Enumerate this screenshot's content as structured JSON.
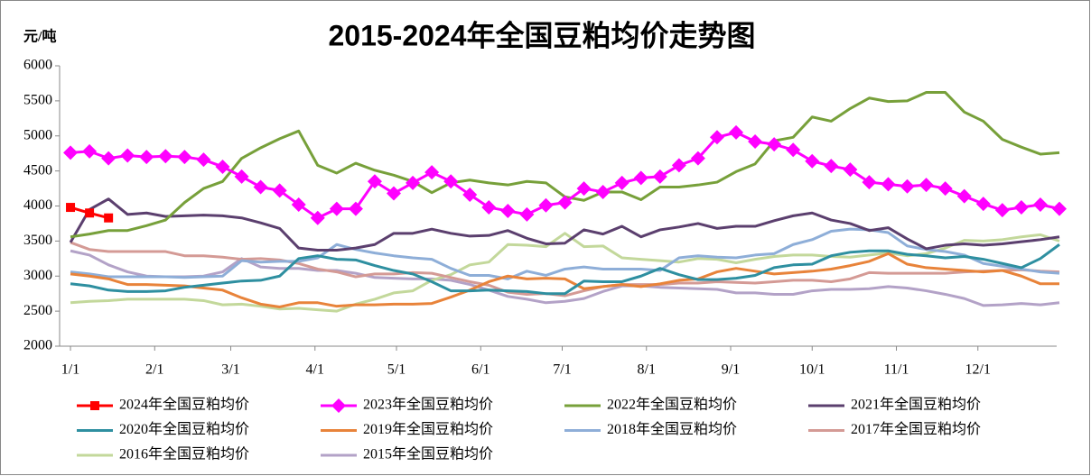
{
  "chart_data": {
    "type": "line",
    "title": "2015-2024年全国豆粕均价走势图",
    "y_axis_label": "元/吨",
    "x": [
      0,
      7,
      14,
      21,
      28,
      35,
      42,
      49,
      56,
      63,
      70,
      77,
      84,
      91,
      98,
      105,
      112,
      119,
      126,
      133,
      140,
      147,
      154,
      161,
      168,
      175,
      182,
      189,
      196,
      203,
      210,
      217,
      224,
      231,
      238,
      245,
      252,
      259,
      266,
      273,
      280,
      287,
      294,
      301,
      308,
      315,
      322,
      329,
      336,
      343,
      350,
      357,
      364
    ],
    "xlim": [
      -4,
      363
    ],
    "xticks": [
      {
        "value": 0,
        "label": "1/1"
      },
      {
        "value": 31,
        "label": "2/1"
      },
      {
        "value": 59,
        "label": "3/1"
      },
      {
        "value": 90,
        "label": "4/1"
      },
      {
        "value": 120,
        "label": "5/1"
      },
      {
        "value": 151,
        "label": "6/1"
      },
      {
        "value": 181,
        "label": "7/1"
      },
      {
        "value": 212,
        "label": "8/1"
      },
      {
        "value": 243,
        "label": "9/1"
      },
      {
        "value": 273,
        "label": "10/1"
      },
      {
        "value": 304,
        "label": "11/1"
      },
      {
        "value": 334,
        "label": "12/1"
      }
    ],
    "ylim": [
      2000,
      6000
    ],
    "yticks": [
      2000,
      2500,
      3000,
      3500,
      4000,
      4500,
      5000,
      5500,
      6000
    ],
    "grid": false,
    "legend": "bottom",
    "series": [
      {
        "name": "2024年全国豆粕均价",
        "color": "#ff0000",
        "marker": "square",
        "values": [
          3980,
          3900,
          3830,
          null,
          null,
          null,
          null,
          null,
          null,
          null,
          null,
          null,
          null,
          null,
          null,
          null,
          null,
          null,
          null,
          null,
          null,
          null,
          null,
          null,
          null,
          null,
          null,
          null,
          null,
          null,
          null,
          null,
          null,
          null,
          null,
          null,
          null,
          null,
          null,
          null,
          null,
          null,
          null,
          null,
          null,
          null,
          null,
          null,
          null,
          null,
          null,
          null,
          null
        ]
      },
      {
        "name": "2023年全国豆粕均价",
        "color": "#ff00ff",
        "marker": "diamond",
        "values": [
          4760,
          4780,
          4680,
          4720,
          4700,
          4710,
          4700,
          4660,
          4560,
          4420,
          4270,
          4220,
          4020,
          3830,
          3960,
          3960,
          4350,
          4180,
          4330,
          4480,
          4350,
          4160,
          3980,
          3930,
          3880,
          4010,
          4050,
          4250,
          4200,
          4330,
          4400,
          4420,
          4580,
          4680,
          4980,
          5050,
          4920,
          4880,
          4800,
          4640,
          4570,
          4520,
          4340,
          4310,
          4280,
          4300,
          4250,
          4140,
          4030,
          3940,
          3980,
          4020,
          3960
        ]
      },
      {
        "name": "2022年全国豆粕均价",
        "color": "#77a03a",
        "values": [
          3560,
          3600,
          3650,
          3650,
          3720,
          3800,
          4050,
          4250,
          4350,
          4680,
          4830,
          4960,
          5070,
          4580,
          4470,
          4610,
          4510,
          4440,
          4350,
          4190,
          4330,
          4370,
          4330,
          4300,
          4350,
          4330,
          4130,
          4080,
          4200,
          4200,
          4090,
          4270,
          4270,
          4300,
          4340,
          4490,
          4600,
          4930,
          4980,
          5270,
          5210,
          5390,
          5540,
          5490,
          5500,
          5620,
          5620,
          5340,
          5210,
          4950,
          4840,
          4740,
          4760
        ]
      },
      {
        "name": "2021年全国豆粕均价",
        "color": "#5b3f6e",
        "values": [
          3480,
          3950,
          4100,
          3880,
          3900,
          3850,
          3860,
          3870,
          3860,
          3830,
          3760,
          3680,
          3400,
          3370,
          3370,
          3400,
          3450,
          3610,
          3610,
          3670,
          3610,
          3570,
          3580,
          3650,
          3540,
          3460,
          3470,
          3660,
          3600,
          3710,
          3560,
          3660,
          3700,
          3750,
          3680,
          3710,
          3710,
          3790,
          3860,
          3900,
          3800,
          3750,
          3650,
          3690,
          3530,
          3390,
          3440,
          3460,
          3440,
          3460,
          3490,
          3520,
          3560
        ]
      },
      {
        "name": "2020年全国豆粕均价",
        "color": "#2e8fa0",
        "values": [
          2890,
          2860,
          2800,
          2780,
          2780,
          2790,
          2840,
          2870,
          2900,
          2930,
          2940,
          3000,
          3250,
          3290,
          3240,
          3230,
          3150,
          3080,
          3030,
          2920,
          2790,
          2790,
          2800,
          2790,
          2780,
          2750,
          2750,
          2930,
          2920,
          2920,
          3000,
          3110,
          3020,
          2950,
          2950,
          2970,
          3010,
          3120,
          3160,
          3170,
          3290,
          3340,
          3360,
          3360,
          3310,
          3290,
          3260,
          3280,
          3240,
          3180,
          3120,
          3250,
          3450
        ]
      },
      {
        "name": "2019年全国豆粕均价",
        "color": "#e8833a",
        "values": [
          3030,
          3000,
          2960,
          2880,
          2880,
          2870,
          2860,
          2830,
          2800,
          2690,
          2600,
          2560,
          2620,
          2620,
          2570,
          2590,
          2590,
          2600,
          2600,
          2610,
          2700,
          2800,
          2920,
          3000,
          2960,
          2970,
          2960,
          2820,
          2850,
          2880,
          2850,
          2890,
          2940,
          2960,
          3060,
          3110,
          3070,
          3030,
          3050,
          3070,
          3100,
          3150,
          3210,
          3320,
          3170,
          3120,
          3100,
          3080,
          3060,
          3080,
          3000,
          2890,
          2890
        ]
      },
      {
        "name": "2018年全国豆粕均价",
        "color": "#8eaed8",
        "values": [
          3060,
          3030,
          2990,
          2990,
          2990,
          2990,
          2980,
          2990,
          3000,
          3220,
          3200,
          3210,
          3210,
          3260,
          3450,
          3380,
          3330,
          3290,
          3260,
          3240,
          3110,
          3010,
          3010,
          2960,
          3070,
          3010,
          3100,
          3130,
          3100,
          3100,
          3100,
          3080,
          3260,
          3290,
          3270,
          3260,
          3300,
          3320,
          3450,
          3520,
          3640,
          3670,
          3660,
          3620,
          3430,
          3380,
          3350,
          3300,
          3180,
          3140,
          3100,
          3060,
          3040
        ]
      },
      {
        "name": "2017年全国豆粕均价",
        "color": "#d49a95",
        "values": [
          3480,
          3380,
          3350,
          3350,
          3350,
          3350,
          3290,
          3290,
          3270,
          3240,
          3250,
          3230,
          3180,
          3100,
          3060,
          2990,
          3030,
          3030,
          3050,
          3040,
          2980,
          2920,
          2870,
          2770,
          2740,
          2750,
          2720,
          2790,
          2850,
          2880,
          2880,
          2880,
          2900,
          2900,
          2920,
          2910,
          2900,
          2920,
          2940,
          2940,
          2920,
          2960,
          3050,
          3040,
          3040,
          3040,
          3040,
          3060,
          3070,
          3080,
          3090,
          3070,
          3060
        ]
      },
      {
        "name": "2016年全国豆粕均价",
        "color": "#c3d89b",
        "values": [
          2620,
          2640,
          2650,
          2670,
          2670,
          2670,
          2670,
          2650,
          2590,
          2600,
          2570,
          2530,
          2540,
          2520,
          2500,
          2600,
          2670,
          2760,
          2790,
          2940,
          3020,
          3160,
          3200,
          3450,
          3440,
          3420,
          3610,
          3420,
          3430,
          3260,
          3240,
          3220,
          3200,
          3250,
          3240,
          3190,
          3240,
          3280,
          3300,
          3300,
          3280,
          3270,
          3300,
          3330,
          3290,
          3320,
          3400,
          3510,
          3500,
          3520,
          3560,
          3590,
          3500
        ]
      },
      {
        "name": "2015年全国豆粕均价",
        "color": "#b3a2c7",
        "values": [
          3360,
          3300,
          3160,
          3060,
          3000,
          2990,
          2990,
          3000,
          3060,
          3250,
          3130,
          3110,
          3110,
          3080,
          3080,
          3040,
          2980,
          2970,
          2960,
          2960,
          2940,
          2880,
          2800,
          2710,
          2670,
          2620,
          2640,
          2680,
          2780,
          2860,
          2860,
          2840,
          2830,
          2820,
          2810,
          2760,
          2760,
          2740,
          2740,
          2790,
          2810,
          2810,
          2820,
          2850,
          2830,
          2790,
          2740,
          2680,
          2580,
          2590,
          2610,
          2590,
          2620
        ]
      }
    ]
  }
}
